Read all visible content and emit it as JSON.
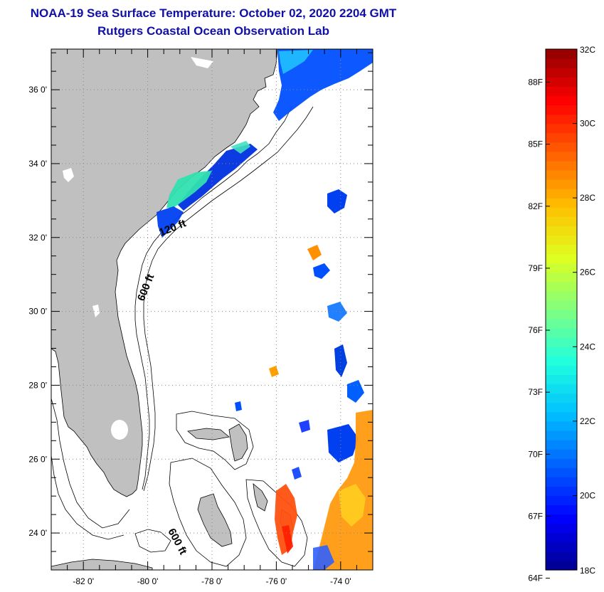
{
  "title": "NOAA-19 Sea Surface Temperature:  October 02, 2020 2204 GMT",
  "subtitle": "Rutgers Coastal Ocean Observation Lab",
  "map": {
    "lat_range": [
      23,
      37.1
    ],
    "lon_range": [
      -83,
      -73
    ],
    "lat_ticks": [
      {
        "value": 36,
        "label": "36 0'"
      },
      {
        "value": 34,
        "label": "34 0'"
      },
      {
        "value": 32,
        "label": "32 0'"
      },
      {
        "value": 30,
        "label": "30 0'"
      },
      {
        "value": 28,
        "label": "28 0'"
      },
      {
        "value": 26,
        "label": "26 0'"
      },
      {
        "value": 24,
        "label": "24 0'"
      }
    ],
    "lon_ticks": [
      {
        "value": -82,
        "label": "-82 0'"
      },
      {
        "value": -80,
        "label": "-80 0'"
      },
      {
        "value": -78,
        "label": "-78 0'"
      },
      {
        "value": -76,
        "label": "-76 0'"
      },
      {
        "value": -74,
        "label": "-74 0'"
      }
    ],
    "contour_labels": {
      "label_120": "120 ft",
      "label_600_north": "600 ft",
      "label_600_south": "600 ft"
    },
    "land_color": "#c0c0c0",
    "water_color": "#ffffff"
  },
  "colorbar": {
    "min_c": 18,
    "max_c": 32,
    "celsius_ticks": [
      {
        "value": 32,
        "label": "32C"
      },
      {
        "value": 30,
        "label": "30C"
      },
      {
        "value": 28,
        "label": "28C"
      },
      {
        "value": 26,
        "label": "26C"
      },
      {
        "value": 24,
        "label": "24C"
      },
      {
        "value": 22,
        "label": "22C"
      },
      {
        "value": 20,
        "label": "20C"
      },
      {
        "value": 18,
        "label": "18C"
      }
    ],
    "fahrenheit_ticks": [
      {
        "value": 88,
        "label": "88F"
      },
      {
        "value": 85,
        "label": "85F"
      },
      {
        "value": 82,
        "label": "82F"
      },
      {
        "value": 79,
        "label": "79F"
      },
      {
        "value": 76,
        "label": "76F"
      },
      {
        "value": 73,
        "label": "73F"
      },
      {
        "value": 70,
        "label": "70F"
      },
      {
        "value": 67,
        "label": "67F"
      },
      {
        "value": 64,
        "label": "64F"
      }
    ],
    "colors": [
      "#00008f",
      "#0000ff",
      "#0060ff",
      "#00bfff",
      "#20ffdf",
      "#80ff80",
      "#dfff20",
      "#ffbf00",
      "#ff6000",
      "#ff0000",
      "#8f0000"
    ]
  }
}
